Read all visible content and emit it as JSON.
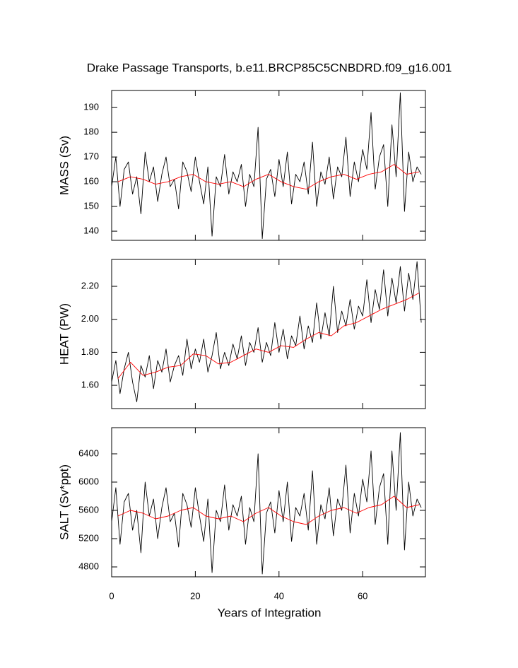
{
  "title": "Drake Passage Transports, b.e11.BRCP85C5CNBDRD.f09_g16.001",
  "xlabel": "Years of Integration",
  "chart_data": [
    {
      "type": "line",
      "ylabel": "MASS (Sv)",
      "xlim": [
        0,
        75
      ],
      "xticks": [
        0,
        20,
        40,
        60
      ],
      "ylim": [
        136.3,
        196.9
      ],
      "yticks": [
        140,
        150,
        160,
        170,
        180,
        190
      ],
      "series": [
        {
          "color": "#000000",
          "x": [
            0,
            1,
            2,
            3,
            4,
            5,
            6,
            7,
            8,
            9,
            10,
            11,
            12,
            13,
            14,
            15,
            16,
            17,
            18,
            19,
            20,
            21,
            22,
            23,
            24,
            25,
            26,
            27,
            28,
            29,
            30,
            31,
            32,
            33,
            34,
            35,
            36,
            37,
            38,
            39,
            40,
            41,
            42,
            43,
            44,
            45,
            46,
            47,
            48,
            49,
            50,
            51,
            52,
            53,
            54,
            55,
            56,
            57,
            58,
            59,
            60,
            61,
            62,
            63,
            64,
            65,
            66,
            67,
            68,
            69,
            70,
            71,
            72,
            73,
            74
          ],
          "values": [
            158,
            170,
            150,
            165,
            168,
            155,
            162,
            147,
            172,
            160,
            166,
            152,
            163,
            170,
            158,
            161,
            149,
            168,
            164,
            156,
            170,
            160,
            151,
            166,
            138,
            162,
            158,
            171,
            155,
            164,
            160,
            167,
            150,
            163,
            158,
            182,
            137,
            161,
            165,
            154,
            169,
            158,
            172,
            151,
            163,
            160,
            168,
            155,
            176,
            150,
            164,
            159,
            170,
            153,
            166,
            162,
            178,
            154,
            168,
            160,
            173,
            165,
            188,
            157,
            170,
            175,
            150,
            183,
            162,
            196,
            148,
            172,
            160,
            166,
            163
          ]
        },
        {
          "color": "#ff0000",
          "x": [
            1.5,
            4.5,
            7.5,
            10.5,
            13.5,
            16.5,
            19.5,
            22.5,
            25.5,
            28.5,
            31.5,
            34.5,
            37.5,
            40.5,
            43.5,
            46.5,
            49.5,
            52.5,
            55.5,
            58.5,
            61.5,
            64.5,
            67.5,
            70.5,
            73.5
          ],
          "values": [
            160,
            162,
            161,
            159,
            160,
            162,
            163,
            160,
            159,
            160,
            158,
            161,
            163,
            160,
            158,
            157,
            160,
            162,
            163,
            161,
            163,
            164,
            167,
            163,
            164
          ]
        }
      ]
    },
    {
      "type": "line",
      "ylabel": "HEAT (PW)",
      "xlim": [
        0,
        75
      ],
      "xticks": [
        0,
        20,
        40,
        60
      ],
      "ylim": [
        1.459,
        2.363
      ],
      "yticks": [
        {
          "value": 1.6,
          "label": "1.60"
        },
        {
          "value": 1.8,
          "label": "1.80"
        },
        {
          "value": 2.0,
          "label": "2.00"
        },
        {
          "value": 2.2,
          "label": "2.20"
        }
      ],
      "series": [
        {
          "color": "#000000",
          "x": [
            0,
            1,
            2,
            3,
            4,
            5,
            6,
            7,
            8,
            9,
            10,
            11,
            12,
            13,
            14,
            15,
            16,
            17,
            18,
            19,
            20,
            21,
            22,
            23,
            24,
            25,
            26,
            27,
            28,
            29,
            30,
            31,
            32,
            33,
            34,
            35,
            36,
            37,
            38,
            39,
            40,
            41,
            42,
            43,
            44,
            45,
            46,
            47,
            48,
            49,
            50,
            51,
            52,
            53,
            54,
            55,
            56,
            57,
            58,
            59,
            60,
            61,
            62,
            63,
            64,
            65,
            66,
            67,
            68,
            69,
            70,
            71,
            72,
            73,
            74
          ],
          "values": [
            1.62,
            1.75,
            1.55,
            1.7,
            1.8,
            1.62,
            1.5,
            1.72,
            1.65,
            1.78,
            1.58,
            1.75,
            1.68,
            1.82,
            1.62,
            1.72,
            1.78,
            1.66,
            1.88,
            1.7,
            1.82,
            1.74,
            1.88,
            1.68,
            1.78,
            1.92,
            1.7,
            1.8,
            1.72,
            1.85,
            1.76,
            1.9,
            1.72,
            1.86,
            1.8,
            1.95,
            1.74,
            1.86,
            1.78,
            1.98,
            1.8,
            1.94,
            1.76,
            1.9,
            1.84,
            2.02,
            1.82,
            1.96,
            1.86,
            2.1,
            1.88,
            2.04,
            1.9,
            2.2,
            1.92,
            2.05,
            1.96,
            2.12,
            1.94,
            2.08,
            2.02,
            2.24,
            1.98,
            2.18,
            2.06,
            2.3,
            2.02,
            2.25,
            2.1,
            2.32,
            2.05,
            2.28,
            2.12,
            2.35,
            1.98
          ]
        },
        {
          "color": "#ff0000",
          "x": [
            1.5,
            4.5,
            7.5,
            10.5,
            13.5,
            16.5,
            19.5,
            22.5,
            25.5,
            28.5,
            31.5,
            34.5,
            37.5,
            40.5,
            43.5,
            46.5,
            49.5,
            52.5,
            55.5,
            58.5,
            61.5,
            64.5,
            67.5,
            70.5,
            73.5
          ],
          "values": [
            1.64,
            1.74,
            1.66,
            1.68,
            1.71,
            1.72,
            1.79,
            1.78,
            1.73,
            1.74,
            1.78,
            1.82,
            1.8,
            1.84,
            1.83,
            1.88,
            1.92,
            1.9,
            1.96,
            1.98,
            2.02,
            2.06,
            2.09,
            2.12,
            2.16
          ]
        }
      ]
    },
    {
      "type": "line",
      "ylabel": "SALT (Sv*ppt)",
      "xlim": [
        0,
        75
      ],
      "xticks": [
        0,
        20,
        40,
        60
      ],
      "ylim": [
        4660,
        6770
      ],
      "yticks": [
        4800,
        5200,
        5600,
        6000,
        6400
      ],
      "series": [
        {
          "color": "#000000",
          "x": [
            0,
            1,
            2,
            3,
            4,
            5,
            6,
            7,
            8,
            9,
            10,
            11,
            12,
            13,
            14,
            15,
            16,
            17,
            18,
            19,
            20,
            21,
            22,
            23,
            24,
            25,
            26,
            27,
            28,
            29,
            30,
            31,
            32,
            33,
            34,
            35,
            36,
            37,
            38,
            39,
            40,
            41,
            42,
            43,
            44,
            45,
            46,
            47,
            48,
            49,
            50,
            51,
            52,
            53,
            54,
            55,
            56,
            57,
            58,
            59,
            60,
            61,
            62,
            63,
            64,
            65,
            66,
            67,
            68,
            69,
            70,
            71,
            72,
            73,
            74
          ],
          "values": [
            5440,
            5920,
            5120,
            5720,
            5840,
            5320,
            5600,
            5000,
            6000,
            5520,
            5760,
            5200,
            5640,
            5920,
            5440,
            5560,
            5080,
            5840,
            5680,
            5360,
            5920,
            5520,
            5160,
            5760,
            4720,
            5600,
            5440,
            5960,
            5320,
            5680,
            5520,
            5800,
            5120,
            5640,
            5440,
            6400,
            4700,
            5560,
            5720,
            5280,
            5880,
            5440,
            6000,
            5160,
            5640,
            5520,
            5840,
            5320,
            6160,
            5120,
            5680,
            5480,
            5920,
            5240,
            5760,
            5600,
            6240,
            5280,
            5840,
            5520,
            6040,
            5720,
            6440,
            5400,
            5920,
            6120,
            5120,
            6440,
            5600,
            6700,
            5040,
            6000,
            5520,
            5760,
            5640
          ]
        },
        {
          "color": "#ff0000",
          "x": [
            1.5,
            4.5,
            7.5,
            10.5,
            13.5,
            16.5,
            19.5,
            22.5,
            25.5,
            28.5,
            31.5,
            34.5,
            37.5,
            40.5,
            43.5,
            46.5,
            49.5,
            52.5,
            55.5,
            58.5,
            61.5,
            64.5,
            67.5,
            70.5,
            73.5
          ],
          "values": [
            5520,
            5600,
            5560,
            5480,
            5520,
            5600,
            5640,
            5520,
            5480,
            5520,
            5440,
            5560,
            5640,
            5520,
            5440,
            5400,
            5520,
            5600,
            5640,
            5560,
            5640,
            5680,
            5800,
            5640,
            5680
          ]
        }
      ]
    }
  ]
}
